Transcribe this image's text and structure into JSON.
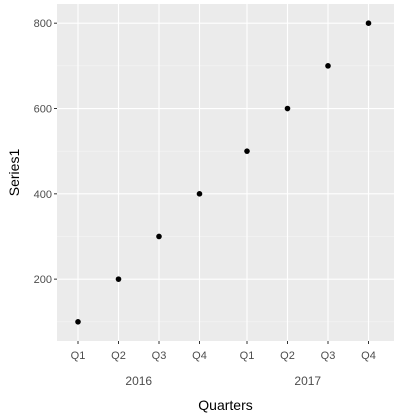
{
  "chart_data": {
    "type": "scatter",
    "xlabel": "Quarters",
    "ylabel": "Series1",
    "ylim": [
      55,
      845
    ],
    "yticks": [
      200,
      400,
      600,
      800
    ],
    "grid": true,
    "x_groups": [
      {
        "label": "2016",
        "categories": [
          "Q1",
          "Q2",
          "Q3",
          "Q4"
        ]
      },
      {
        "label": "2017",
        "categories": [
          "Q1",
          "Q2",
          "Q3",
          "Q4"
        ]
      }
    ],
    "points": [
      {
        "group": "2016",
        "quarter": "Q1",
        "value": 100
      },
      {
        "group": "2016",
        "quarter": "Q2",
        "value": 200
      },
      {
        "group": "2016",
        "quarter": "Q3",
        "value": 300
      },
      {
        "group": "2016",
        "quarter": "Q4",
        "value": 400
      },
      {
        "group": "2017",
        "quarter": "Q1",
        "value": 500
      },
      {
        "group": "2017",
        "quarter": "Q2",
        "value": 600
      },
      {
        "group": "2017",
        "quarter": "Q3",
        "value": 700
      },
      {
        "group": "2017",
        "quarter": "Q4",
        "value": 800
      }
    ]
  }
}
